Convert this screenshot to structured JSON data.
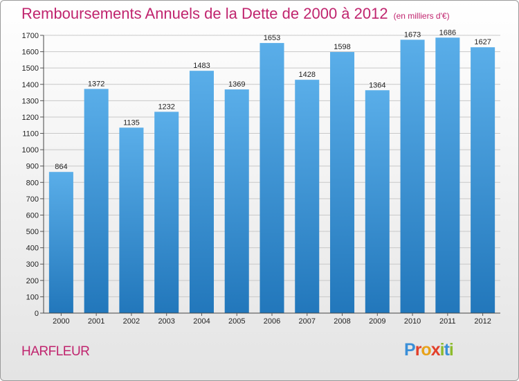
{
  "chart_data": {
    "type": "bar",
    "title": "Remboursements Annuels de la Dette de 2000 à 2012",
    "subtitle": "(en milliers d'€)",
    "categories": [
      "2000",
      "2001",
      "2002",
      "2003",
      "2004",
      "2005",
      "2006",
      "2007",
      "2008",
      "2009",
      "2010",
      "2011",
      "2012"
    ],
    "values": [
      864,
      1372,
      1135,
      1232,
      1483,
      1369,
      1653,
      1428,
      1598,
      1364,
      1673,
      1686,
      1627
    ],
    "ylim": [
      0,
      1700
    ],
    "yticks": [
      0,
      100,
      200,
      300,
      400,
      500,
      600,
      700,
      800,
      900,
      1000,
      1100,
      1200,
      1300,
      1400,
      1500,
      1600,
      1700
    ],
    "grid": true,
    "bar_color_top": "#5aaee9",
    "bar_color_bottom": "#2277bb"
  },
  "footer": {
    "city": "HARFLEUR",
    "logo": [
      {
        "char": "P",
        "color": "#3a8fd8"
      },
      {
        "char": "r",
        "color": "#e2402b"
      },
      {
        "char": "o",
        "color": "#e8a21a"
      },
      {
        "char": "x",
        "color": "#e2402b"
      },
      {
        "char": "i",
        "color": "#8dbb2d"
      },
      {
        "char": "t",
        "color": "#3a8fd8"
      },
      {
        "char": "i",
        "color": "#8dbb2d"
      }
    ]
  }
}
